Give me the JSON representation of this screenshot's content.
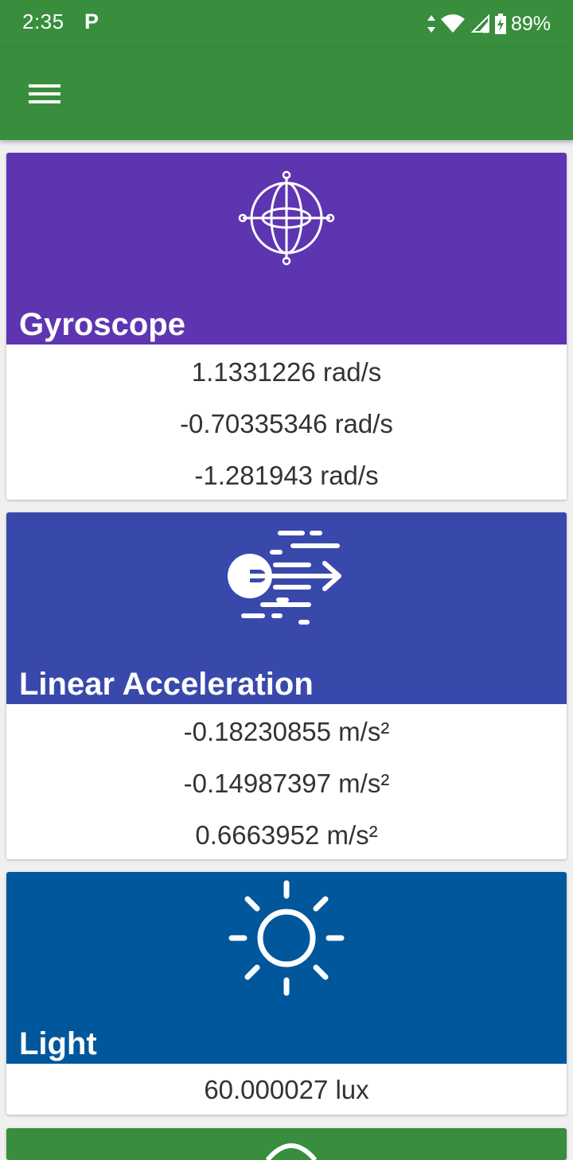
{
  "status_bar": {
    "time": "2:35",
    "notification_icon": "p-icon",
    "battery_percent": "89%"
  },
  "app_bar": {
    "menu_icon": "hamburger-icon"
  },
  "colors": {
    "app_bar": "#388e3c",
    "gyroscope": "#5e35b1",
    "linear_acceleration": "#3949ab",
    "light": "#01579b",
    "next_card": "#388e3c"
  },
  "cards": [
    {
      "title": "Gyroscope",
      "icon": "gyroscope-icon",
      "readings": [
        "1.1331226 rad/s",
        "-0.70335346 rad/s",
        "-1.281943 rad/s"
      ]
    },
    {
      "title": "Linear Acceleration",
      "icon": "linear-acceleration-icon",
      "readings": [
        "-0.18230855 m/s²",
        "-0.14987397 m/s²",
        "0.6663952 m/s²"
      ]
    },
    {
      "title": "Light",
      "icon": "sun-icon",
      "readings": [
        "60.000027 lux"
      ]
    }
  ]
}
